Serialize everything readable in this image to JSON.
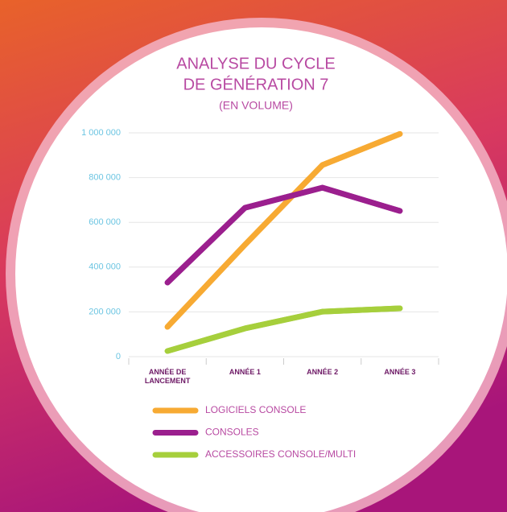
{
  "chart_data": {
    "type": "line",
    "title": [
      "ANALYSE DU CYCLE",
      "DE GÉNÉRATION 7"
    ],
    "subtitle": "(EN VOLUME)",
    "categories": [
      "ANNÉE DE LANCEMENT",
      "ANNÉE 1",
      "ANNÉE 2",
      "ANNÉE 3"
    ],
    "series": [
      {
        "name": "LOGICIELS CONSOLE",
        "color": "#f7aa33",
        "values": [
          133000,
          500000,
          856000,
          995000
        ]
      },
      {
        "name": "CONSOLES",
        "color": "#9b1f8e",
        "values": [
          331000,
          665000,
          755000,
          651000
        ]
      },
      {
        "name": "ACCESSOIRES CONSOLE/MULTI",
        "color": "#a6cf3c",
        "values": [
          25000,
          126000,
          201000,
          216000
        ]
      }
    ],
    "ylim": [
      0,
      1000000
    ],
    "yticks": [
      0,
      {
        "value": 200000,
        "label": "200 000"
      },
      {
        "value": 400000,
        "label": "400 000"
      },
      {
        "value": 600000,
        "label": "600 000"
      },
      {
        "value": 800000,
        "label": "800 000"
      },
      {
        "value": 1000000,
        "label": "1 000 000"
      }
    ],
    "grid": true
  }
}
